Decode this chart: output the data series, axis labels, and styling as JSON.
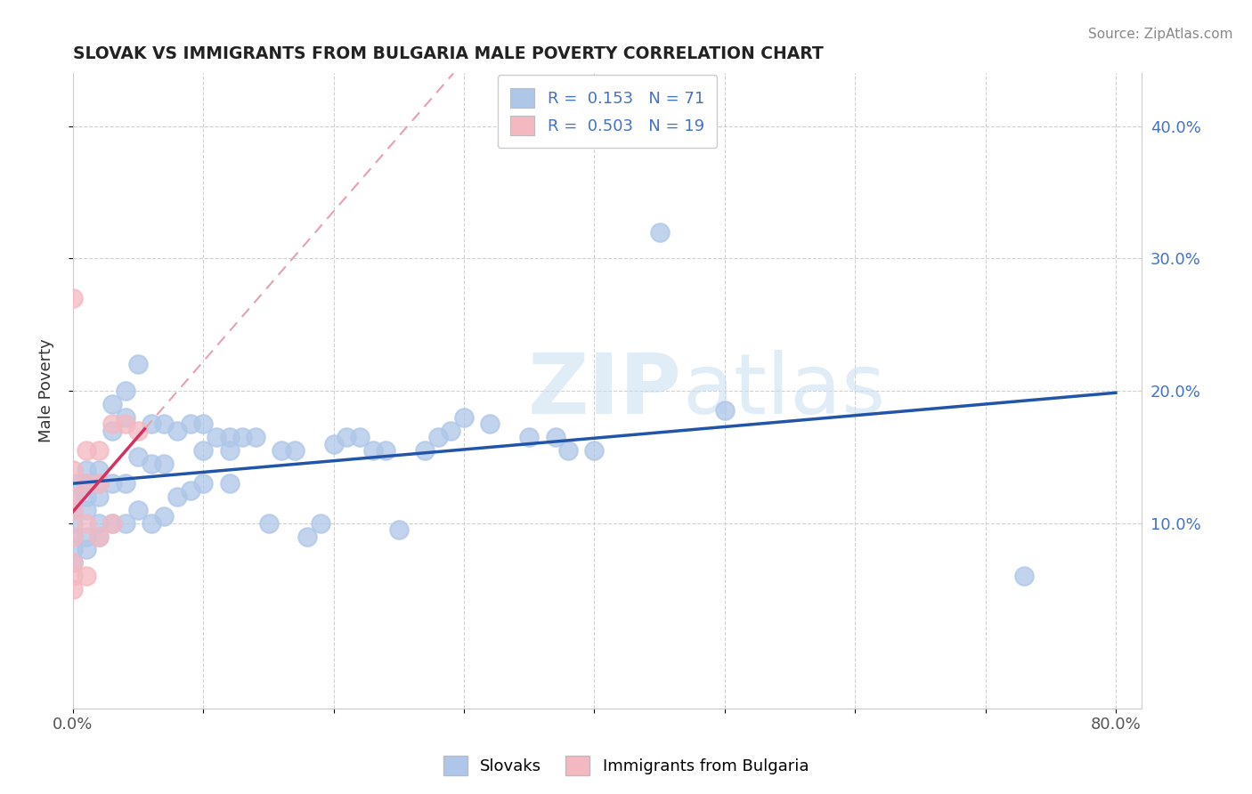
{
  "title": "SLOVAK VS IMMIGRANTS FROM BULGARIA MALE POVERTY CORRELATION CHART",
  "source": "Source: ZipAtlas.com",
  "ylabel": "Male Poverty",
  "xlim": [
    0.0,
    0.82
  ],
  "ylim": [
    -0.04,
    0.44
  ],
  "x_ticks": [
    0.0,
    0.1,
    0.2,
    0.3,
    0.4,
    0.5,
    0.6,
    0.7,
    0.8
  ],
  "x_tick_labels": [
    "0.0%",
    "",
    "",
    "",
    "",
    "",
    "",
    "",
    "80.0%"
  ],
  "y_ticks": [
    0.1,
    0.2,
    0.3,
    0.4
  ],
  "y_tick_labels": [
    "10.0%",
    "20.0%",
    "30.0%",
    "40.0%"
  ],
  "slovaks_color": "#aec6e8",
  "bulgarians_color": "#f4b8c1",
  "slovaks_R": 0.153,
  "slovaks_N": 71,
  "bulgarians_R": 0.503,
  "bulgarians_N": 19,
  "slovaks_line_color": "#2255aa",
  "bulgarians_line_color": "#d63060",
  "bulgarians_dash_color": "#e8a0b0",
  "watermark_zip": "ZIP",
  "watermark_atlas": "atlas",
  "slovaks_x": [
    0.0,
    0.0,
    0.0,
    0.0,
    0.0,
    0.0,
    0.0,
    0.01,
    0.01,
    0.01,
    0.01,
    0.01,
    0.01,
    0.02,
    0.02,
    0.02,
    0.02,
    0.02,
    0.03,
    0.03,
    0.03,
    0.03,
    0.04,
    0.04,
    0.04,
    0.04,
    0.05,
    0.05,
    0.05,
    0.06,
    0.06,
    0.06,
    0.07,
    0.07,
    0.07,
    0.08,
    0.08,
    0.09,
    0.09,
    0.1,
    0.1,
    0.1,
    0.11,
    0.12,
    0.12,
    0.12,
    0.13,
    0.14,
    0.15,
    0.16,
    0.17,
    0.18,
    0.19,
    0.2,
    0.21,
    0.22,
    0.23,
    0.24,
    0.25,
    0.27,
    0.28,
    0.29,
    0.3,
    0.32,
    0.35,
    0.37,
    0.38,
    0.4,
    0.45,
    0.5,
    0.73
  ],
  "slovaks_y": [
    0.13,
    0.12,
    0.11,
    0.1,
    0.09,
    0.08,
    0.07,
    0.14,
    0.13,
    0.12,
    0.11,
    0.09,
    0.08,
    0.14,
    0.13,
    0.12,
    0.1,
    0.09,
    0.19,
    0.17,
    0.13,
    0.1,
    0.2,
    0.18,
    0.13,
    0.1,
    0.22,
    0.15,
    0.11,
    0.175,
    0.145,
    0.1,
    0.175,
    0.145,
    0.105,
    0.17,
    0.12,
    0.175,
    0.125,
    0.175,
    0.155,
    0.13,
    0.165,
    0.165,
    0.155,
    0.13,
    0.165,
    0.165,
    0.1,
    0.155,
    0.155,
    0.09,
    0.1,
    0.16,
    0.165,
    0.165,
    0.155,
    0.155,
    0.095,
    0.155,
    0.165,
    0.17,
    0.18,
    0.175,
    0.165,
    0.165,
    0.155,
    0.155,
    0.32,
    0.185,
    0.06
  ],
  "bulgarians_x": [
    0.0,
    0.0,
    0.0,
    0.0,
    0.0,
    0.0,
    0.0,
    0.0,
    0.01,
    0.01,
    0.01,
    0.01,
    0.02,
    0.02,
    0.02,
    0.03,
    0.03,
    0.04,
    0.05
  ],
  "bulgarians_y": [
    0.27,
    0.14,
    0.12,
    0.11,
    0.09,
    0.07,
    0.06,
    0.05,
    0.155,
    0.13,
    0.1,
    0.06,
    0.155,
    0.13,
    0.09,
    0.175,
    0.1,
    0.175,
    0.17
  ]
}
